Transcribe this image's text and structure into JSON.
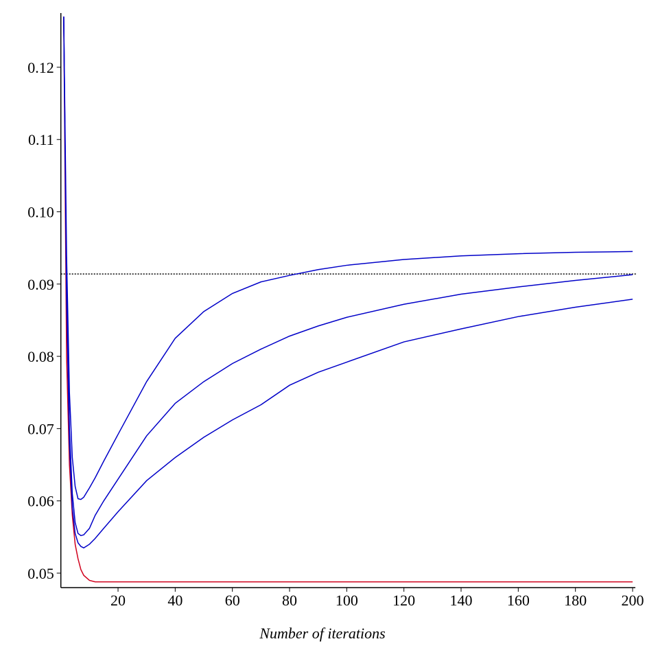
{
  "chart_data": {
    "type": "line",
    "xlabel": "Number of iterations",
    "x": [
      1,
      2,
      3,
      4,
      5,
      6,
      7,
      8,
      10,
      12,
      15,
      20,
      30,
      40,
      50,
      60,
      70,
      80,
      90,
      100,
      120,
      140,
      160,
      180,
      200
    ],
    "series": [
      {
        "color": "#d0001c",
        "values": [
          0.127,
          0.08,
          0.065,
          0.058,
          0.054,
          0.052,
          0.0505,
          0.0497,
          0.049,
          0.0488,
          0.0488,
          0.0488,
          0.0488,
          0.0488,
          0.0488,
          0.0488,
          0.0488,
          0.0488,
          0.0488,
          0.0488,
          0.0488,
          0.0488,
          0.0488,
          0.0488,
          0.0488
        ]
      },
      {
        "color": "#0000c8",
        "values": [
          0.127,
          0.094,
          0.075,
          0.066,
          0.062,
          0.0603,
          0.0602,
          0.0605,
          0.0618,
          0.0632,
          0.0655,
          0.0692,
          0.0765,
          0.0825,
          0.0862,
          0.0887,
          0.0903,
          0.0912,
          0.092,
          0.0926,
          0.0934,
          0.0939,
          0.0942,
          0.0944,
          0.0945
        ]
      },
      {
        "color": "#0000c8",
        "values": [
          0.127,
          0.09,
          0.07,
          0.061,
          0.057,
          0.0555,
          0.0552,
          0.0553,
          0.0562,
          0.058,
          0.06,
          0.063,
          0.069,
          0.0735,
          0.0765,
          0.079,
          0.081,
          0.0828,
          0.0842,
          0.0854,
          0.0872,
          0.0886,
          0.0896,
          0.0905,
          0.0913
        ]
      },
      {
        "color": "#0000c8",
        "values": [
          0.127,
          0.088,
          0.068,
          0.059,
          0.0555,
          0.0542,
          0.0537,
          0.0535,
          0.054,
          0.0548,
          0.0562,
          0.0585,
          0.0628,
          0.066,
          0.0688,
          0.0712,
          0.0733,
          0.076,
          0.0778,
          0.0792,
          0.082,
          0.0838,
          0.0855,
          0.0868,
          0.0879
        ]
      }
    ],
    "hlines": [
      {
        "value": 0.0914,
        "color": "#000000"
      }
    ],
    "xlim": [
      0,
      200
    ],
    "ylim": [
      0.048,
      0.1275
    ],
    "xticks": [
      20,
      40,
      60,
      80,
      100,
      120,
      140,
      160,
      180,
      200
    ],
    "yticks": [
      0.05,
      0.06,
      0.07,
      0.08,
      0.09,
      {
        "value": 0.1,
        "label": "0.10"
      },
      0.11,
      0.12
    ],
    "grid": false
  }
}
